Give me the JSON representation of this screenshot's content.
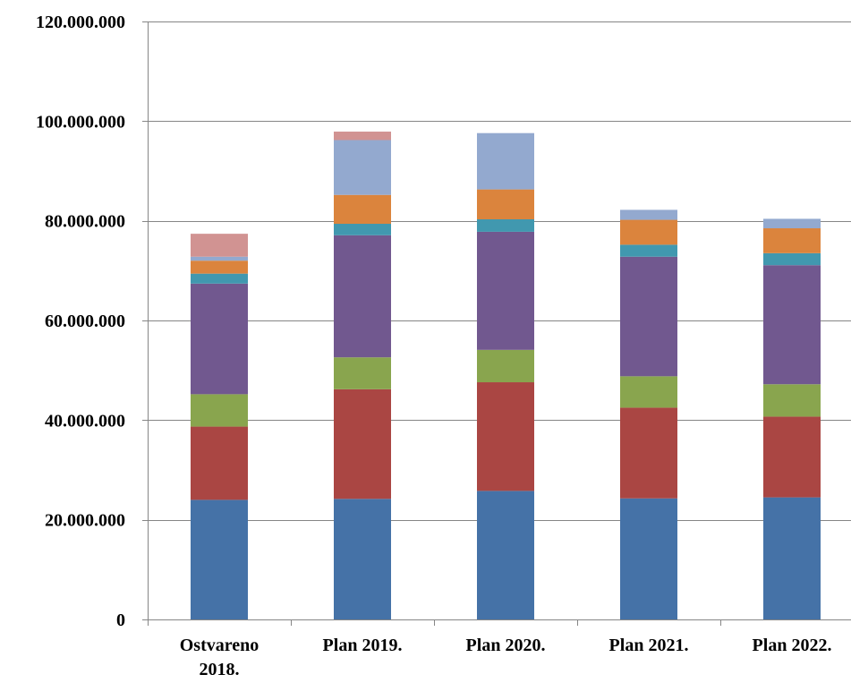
{
  "chart_data": {
    "type": "bar",
    "stacked": true,
    "categories": [
      [
        "Ostvareno",
        "2018."
      ],
      [
        "Plan 2019."
      ],
      [
        "Plan 2020."
      ],
      [
        "Plan 2021."
      ],
      [
        "Plan 2022."
      ]
    ],
    "y_tick_labels": [
      "0",
      "20.000.000",
      "40.000.000",
      "60.000.000",
      "80.000.000",
      "100.000.000",
      "120.000.000"
    ],
    "y_ticks": [
      0,
      20000000,
      40000000,
      60000000,
      80000000,
      100000000,
      120000000
    ],
    "ylim": [
      0,
      120000000
    ],
    "grid": true,
    "legend": "none",
    "series": [
      {
        "color": "#4572A7",
        "values": [
          24000000,
          24200000,
          25800000,
          24300000,
          24500000
        ]
      },
      {
        "color": "#AA4643",
        "values": [
          14700000,
          22000000,
          21800000,
          18200000,
          16200000
        ]
      },
      {
        "color": "#89A54E",
        "values": [
          6500000,
          6400000,
          6500000,
          6300000,
          6500000
        ]
      },
      {
        "color": "#71588F",
        "values": [
          22200000,
          24500000,
          23700000,
          24000000,
          23900000
        ]
      },
      {
        "color": "#4198AF",
        "values": [
          2000000,
          2300000,
          2500000,
          2400000,
          2400000
        ]
      },
      {
        "color": "#DB843D",
        "values": [
          2600000,
          5800000,
          6000000,
          5000000,
          5000000
        ]
      },
      {
        "color": "#93A9CF",
        "values": [
          800000,
          11000000,
          11300000,
          2000000,
          1900000
        ]
      },
      {
        "color": "#D19392",
        "values": [
          4600000,
          1700000,
          0,
          0,
          0
        ]
      }
    ]
  }
}
